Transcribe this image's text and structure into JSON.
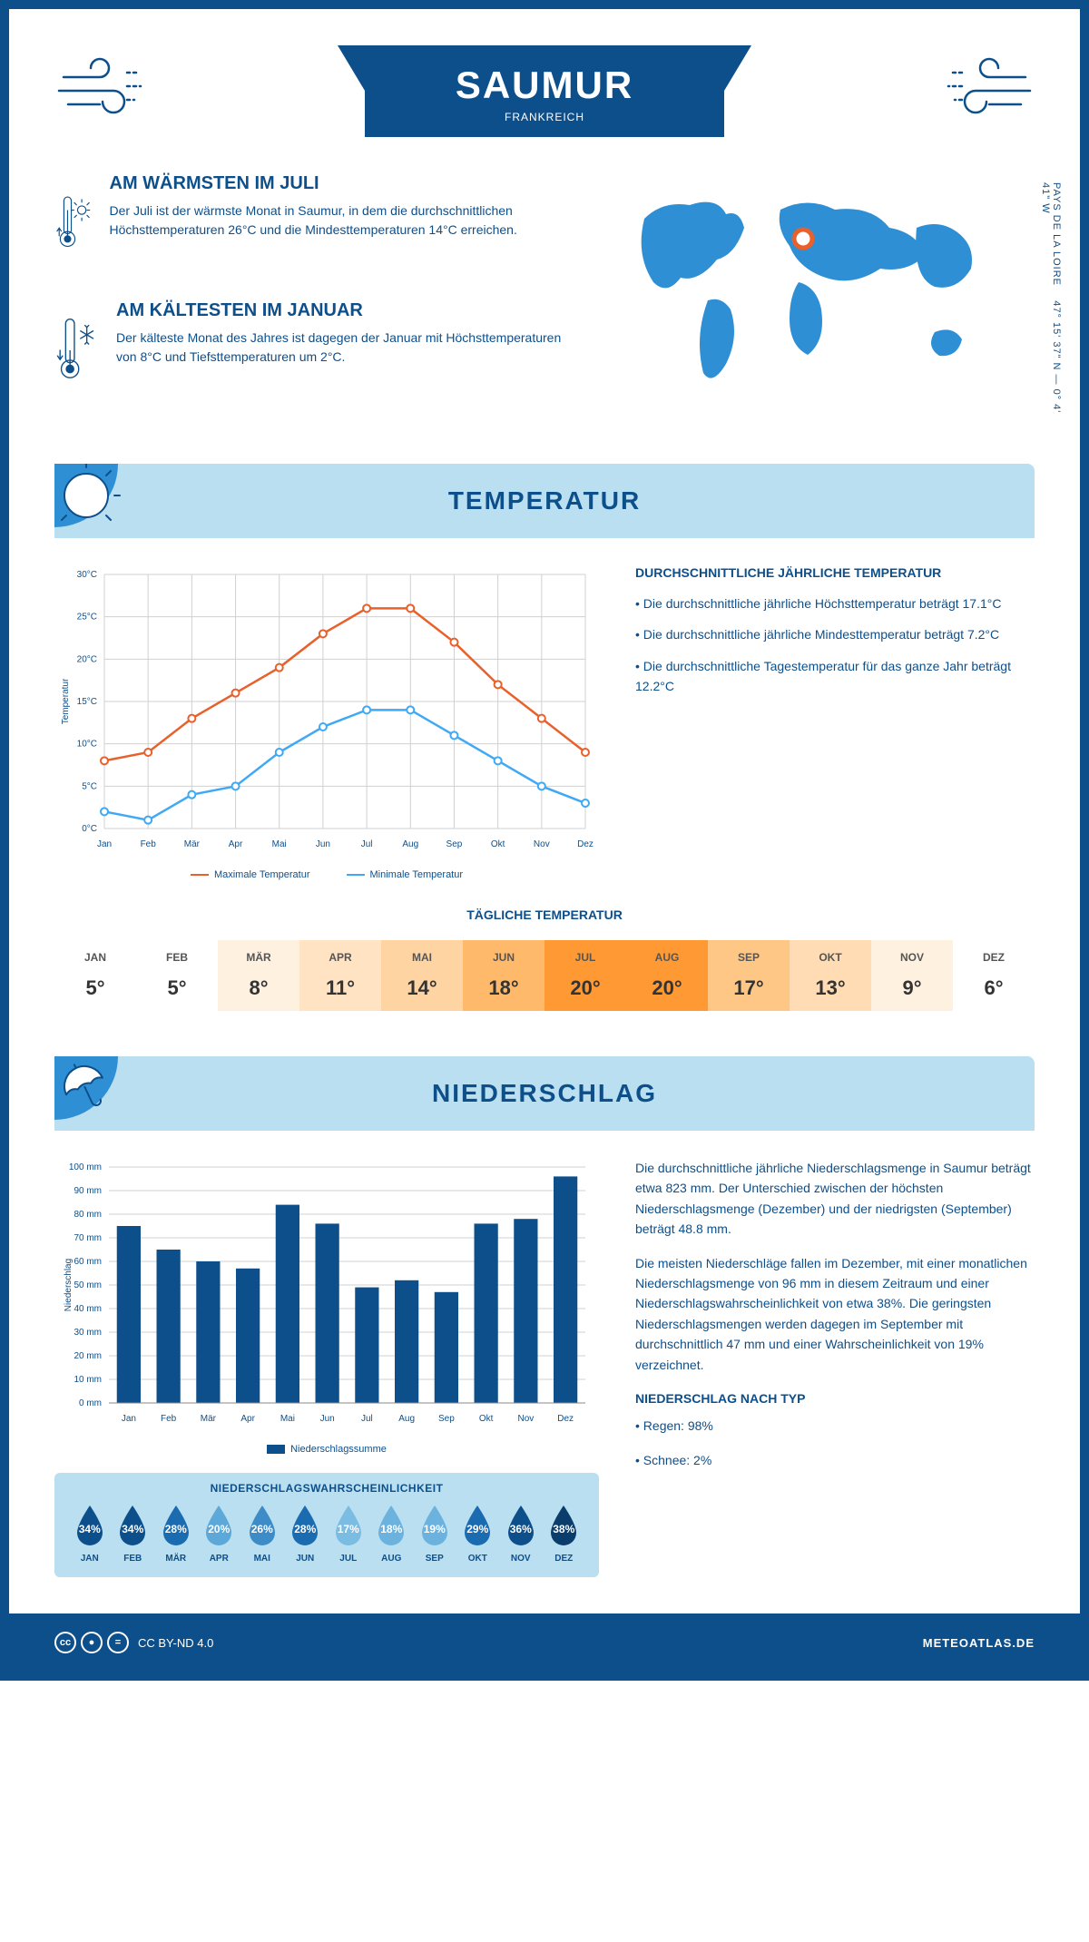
{
  "header": {
    "city": "SAUMUR",
    "country": "FRANKREICH"
  },
  "coords": {
    "lat": "47° 15' 37\" N — 0° 4' 41\" W",
    "region": "PAYS DE LA LOIRE"
  },
  "warm": {
    "title": "AM WÄRMSTEN IM JULI",
    "text": "Der Juli ist der wärmste Monat in Saumur, in dem die durchschnittlichen Höchsttemperaturen 26°C und die Mindesttemperaturen 14°C erreichen."
  },
  "cold": {
    "title": "AM KÄLTESTEN IM JANUAR",
    "text": "Der kälteste Monat des Jahres ist dagegen der Januar mit Höchsttemperaturen von 8°C und Tiefsttemperaturen um 2°C."
  },
  "temp_section": {
    "title": "TEMPERATUR"
  },
  "temp_chart": {
    "months": [
      "Jan",
      "Feb",
      "Mär",
      "Apr",
      "Mai",
      "Jun",
      "Jul",
      "Aug",
      "Sep",
      "Okt",
      "Nov",
      "Dez"
    ],
    "max": [
      8,
      9,
      13,
      16,
      19,
      23,
      26,
      26,
      22,
      17,
      13,
      9
    ],
    "min": [
      2,
      1,
      4,
      5,
      9,
      12,
      14,
      14,
      11,
      8,
      5,
      3
    ],
    "max_color": "#e8602c",
    "min_color": "#3fa9f5",
    "grid_color": "#d0d0d0",
    "ylim": [
      0,
      30
    ],
    "ystep": 5,
    "ylabel": "Temperatur",
    "legend_max": "Maximale Temperatur",
    "legend_min": "Minimale Temperatur"
  },
  "temp_info": {
    "title": "DURCHSCHNITTLICHE JÄHRLICHE TEMPERATUR",
    "b1": "• Die durchschnittliche jährliche Höchsttemperatur beträgt 17.1°C",
    "b2": "• Die durchschnittliche jährliche Mindesttemperatur beträgt 7.2°C",
    "b3": "• Die durchschnittliche Tagestemperatur für das ganze Jahr beträgt 12.2°C"
  },
  "daily": {
    "title": "TÄGLICHE TEMPERATUR",
    "months": [
      "JAN",
      "FEB",
      "MÄR",
      "APR",
      "MAI",
      "JUN",
      "JUL",
      "AUG",
      "SEP",
      "OKT",
      "NOV",
      "DEZ"
    ],
    "values": [
      "5°",
      "5°",
      "8°",
      "11°",
      "14°",
      "18°",
      "20°",
      "20°",
      "17°",
      "13°",
      "9°",
      "6°"
    ],
    "colors": [
      "#ffffff",
      "#ffffff",
      "#fff1e0",
      "#ffe3c2",
      "#ffd4a3",
      "#ffb96b",
      "#ff9933",
      "#ff9933",
      "#ffc786",
      "#ffdcb3",
      "#fff1e0",
      "#ffffff"
    ]
  },
  "precip_section": {
    "title": "NIEDERSCHLAG"
  },
  "precip_chart": {
    "months": [
      "Jan",
      "Feb",
      "Mär",
      "Apr",
      "Mai",
      "Jun",
      "Jul",
      "Aug",
      "Sep",
      "Okt",
      "Nov",
      "Dez"
    ],
    "values": [
      75,
      65,
      60,
      57,
      84,
      76,
      49,
      52,
      47,
      76,
      78,
      96
    ],
    "bar_color": "#0d4f8b",
    "grid_color": "#d0d0d0",
    "ylim": [
      0,
      100
    ],
    "ystep": 10,
    "ylabel": "Niederschlag",
    "legend": "Niederschlagssumme"
  },
  "precip_info": {
    "p1": "Die durchschnittliche jährliche Niederschlagsmenge in Saumur beträgt etwa 823 mm. Der Unterschied zwischen der höchsten Niederschlagsmenge (Dezember) und der niedrigsten (September) beträgt 48.8 mm.",
    "p2": "Die meisten Niederschläge fallen im Dezember, mit einer monatlichen Niederschlagsmenge von 96 mm in diesem Zeitraum und einer Niederschlagswahrscheinlichkeit von etwa 38%. Die geringsten Niederschlagsmengen werden dagegen im September mit durchschnittlich 47 mm und einer Wahrscheinlichkeit von 19% verzeichnet.",
    "type_title": "NIEDERSCHLAG NACH TYP",
    "type1": "• Regen: 98%",
    "type2": "• Schnee: 2%"
  },
  "prob": {
    "title": "NIEDERSCHLAGSWAHRSCHEINLICHKEIT",
    "months": [
      "JAN",
      "FEB",
      "MÄR",
      "APR",
      "MAI",
      "JUN",
      "JUL",
      "AUG",
      "SEP",
      "OKT",
      "NOV",
      "DEZ"
    ],
    "values": [
      "34%",
      "34%",
      "28%",
      "20%",
      "26%",
      "28%",
      "17%",
      "18%",
      "19%",
      "29%",
      "36%",
      "38%"
    ],
    "colors": [
      "#0d4f8b",
      "#0d4f8b",
      "#1a6bb0",
      "#5ba8d9",
      "#3d8cc7",
      "#1a6bb0",
      "#7bbce3",
      "#6bb3de",
      "#6bb3de",
      "#1a6bb0",
      "#0d4f8b",
      "#0a3d6b"
    ]
  },
  "footer": {
    "license": "CC BY-ND 4.0",
    "site": "METEOATLAS.DE"
  }
}
